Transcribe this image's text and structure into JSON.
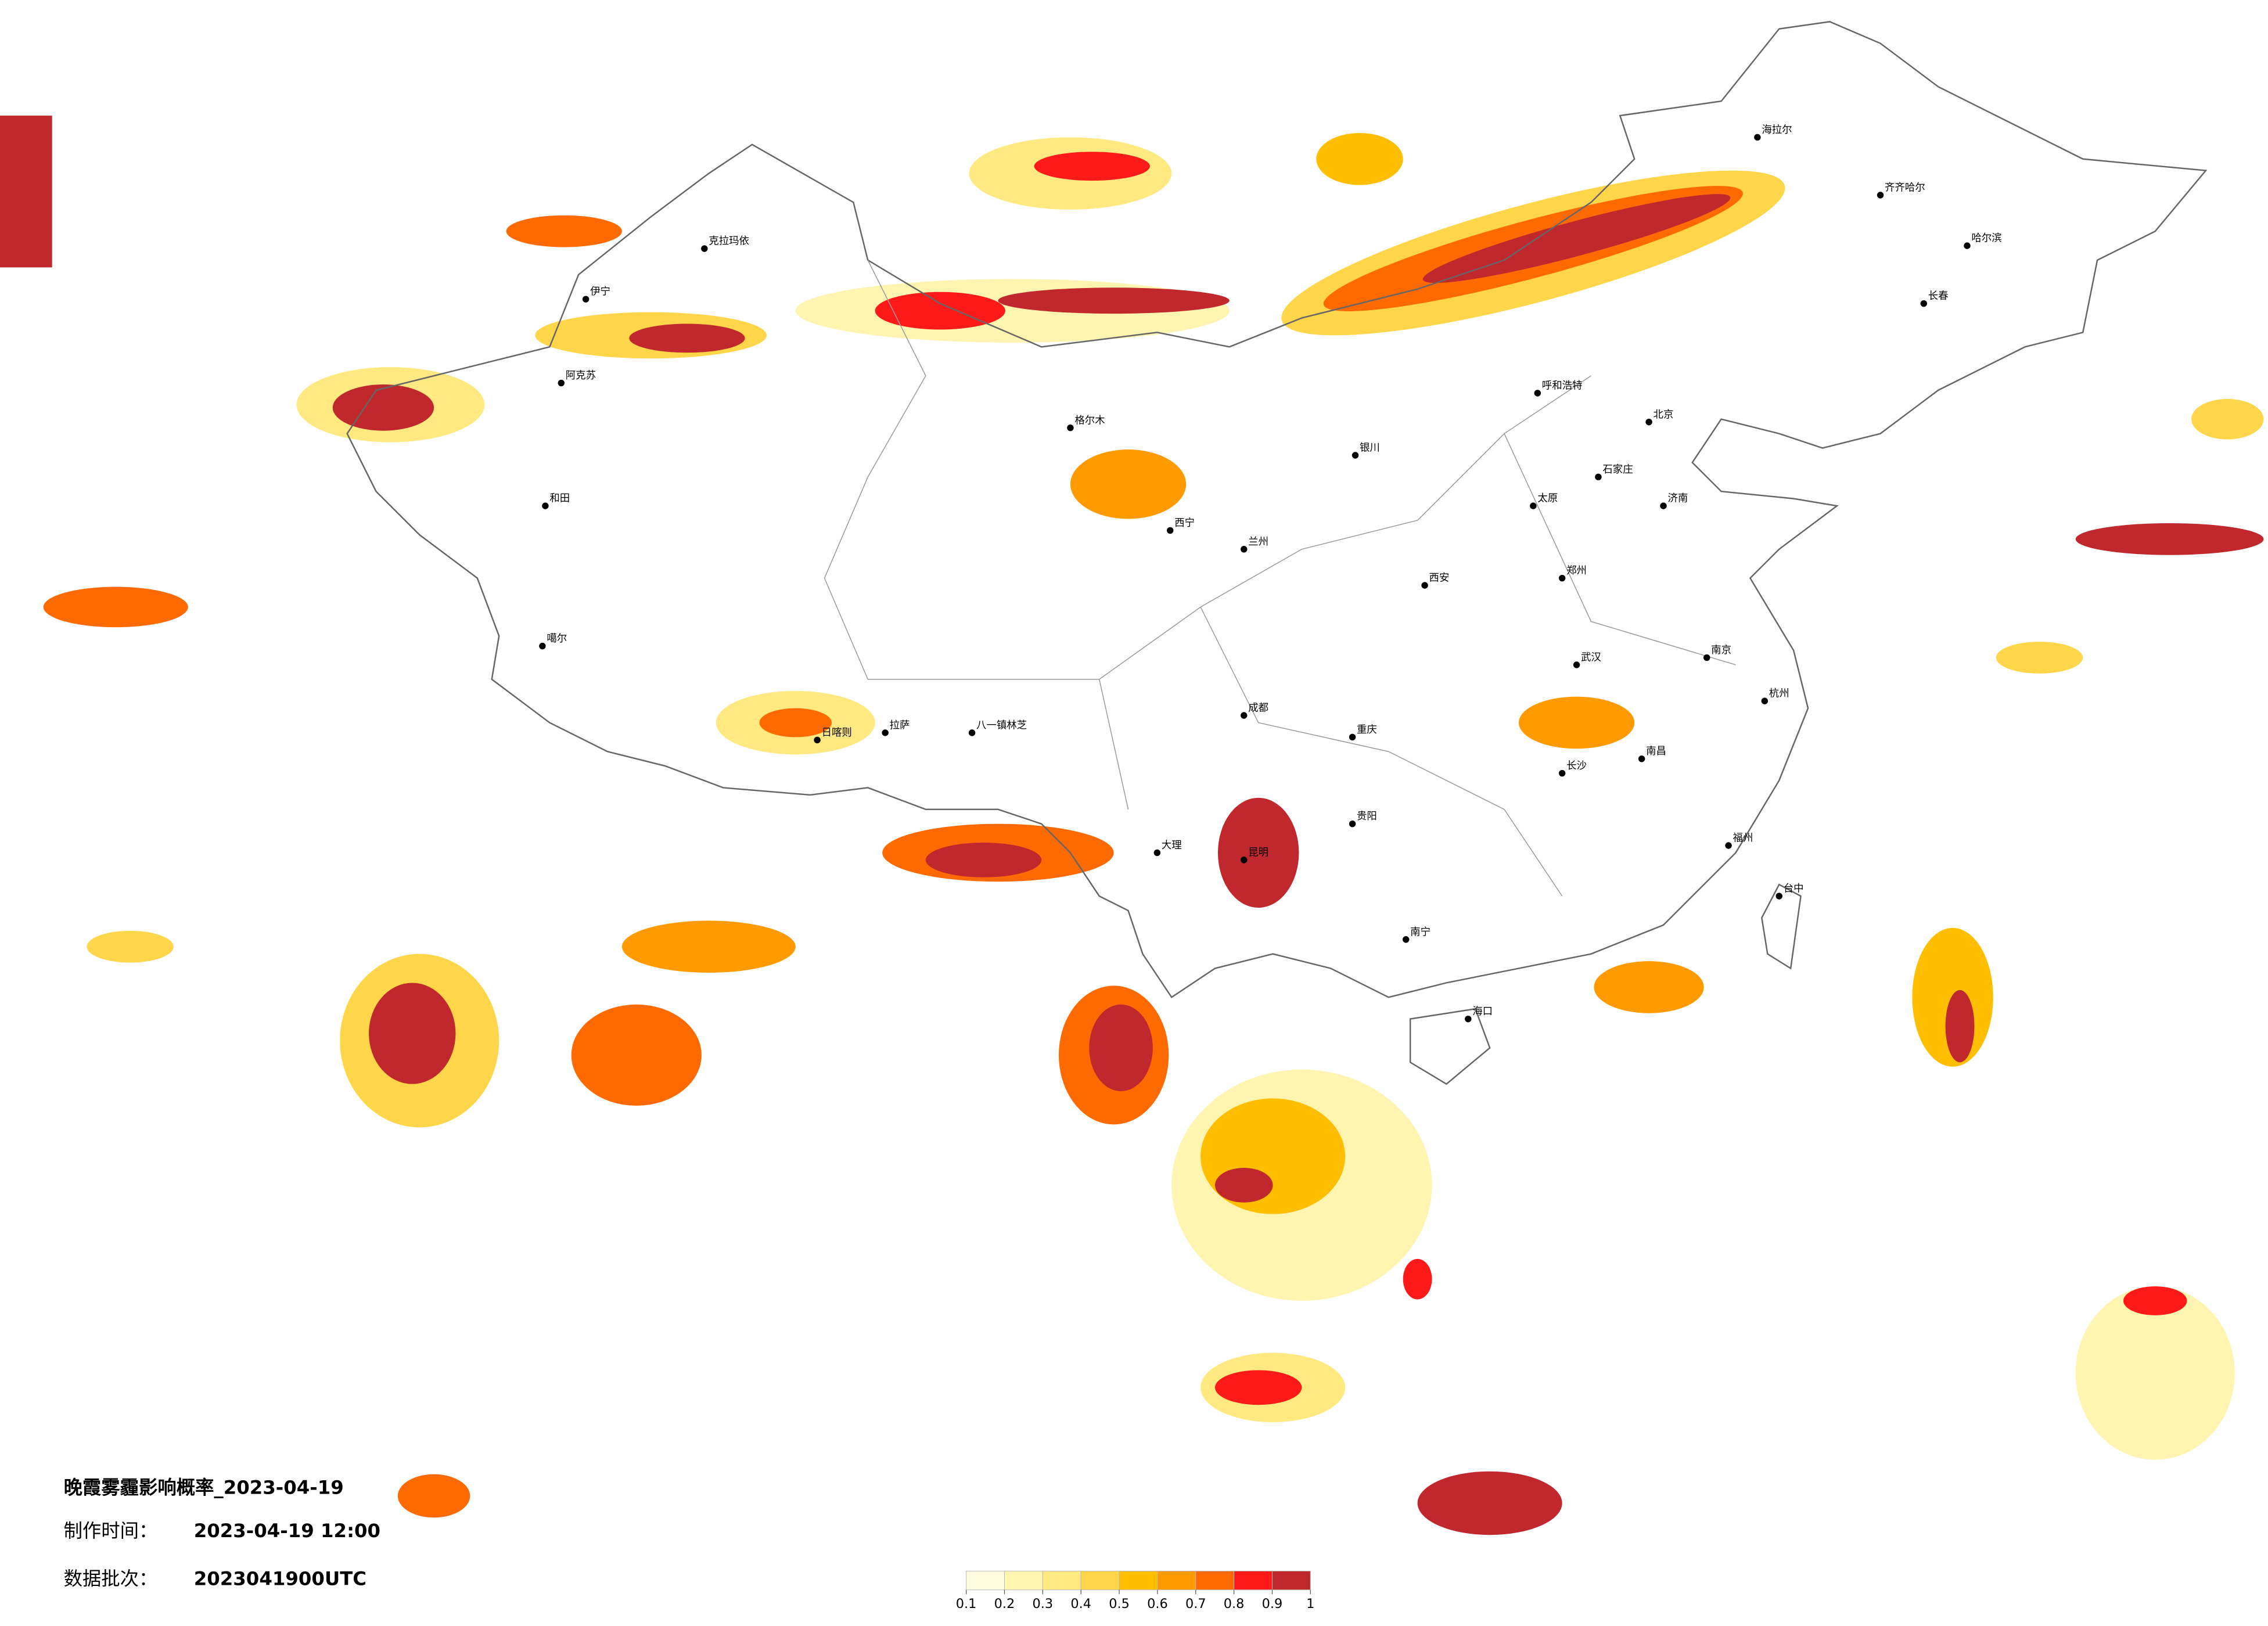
{
  "header": {
    "title": "晚霞雾霾影响概率_2023-04-19",
    "made_label": "制作时间：",
    "made_value": "2023-04-19 12:00",
    "batch_label": "数据批次：",
    "batch_value": "2023041900UTC"
  },
  "legend": {
    "ticks": [
      0.1,
      0.2,
      0.3,
      0.4,
      0.5,
      0.6,
      0.7,
      0.8,
      0.9,
      1
    ],
    "colors": [
      "#fffbe0",
      "#fff4b0",
      "#ffe980",
      "#ffd54a",
      "#ffbf00",
      "#ff9a00",
      "#ff6a00",
      "#ff1a1a",
      "#c0282d"
    ]
  },
  "cities": [
    "克拉玛依",
    "伊宁",
    "阿克苏",
    "和田",
    "噶尔",
    "日喀则",
    "拉萨",
    "八一镇林芝",
    "格尔木",
    "西宁",
    "兰州",
    "银川",
    "呼和浩特",
    "海拉尔",
    "齐齐哈尔",
    "哈尔滨",
    "长春",
    "北京",
    "石家庄",
    "太原",
    "济南",
    "西安",
    "郑州",
    "南京",
    "武汉",
    "杭州",
    "成都",
    "重庆",
    "长沙",
    "南昌",
    "贵阳",
    "昆明",
    "大理",
    "南宁",
    "福州",
    "台中",
    "海口"
  ]
}
